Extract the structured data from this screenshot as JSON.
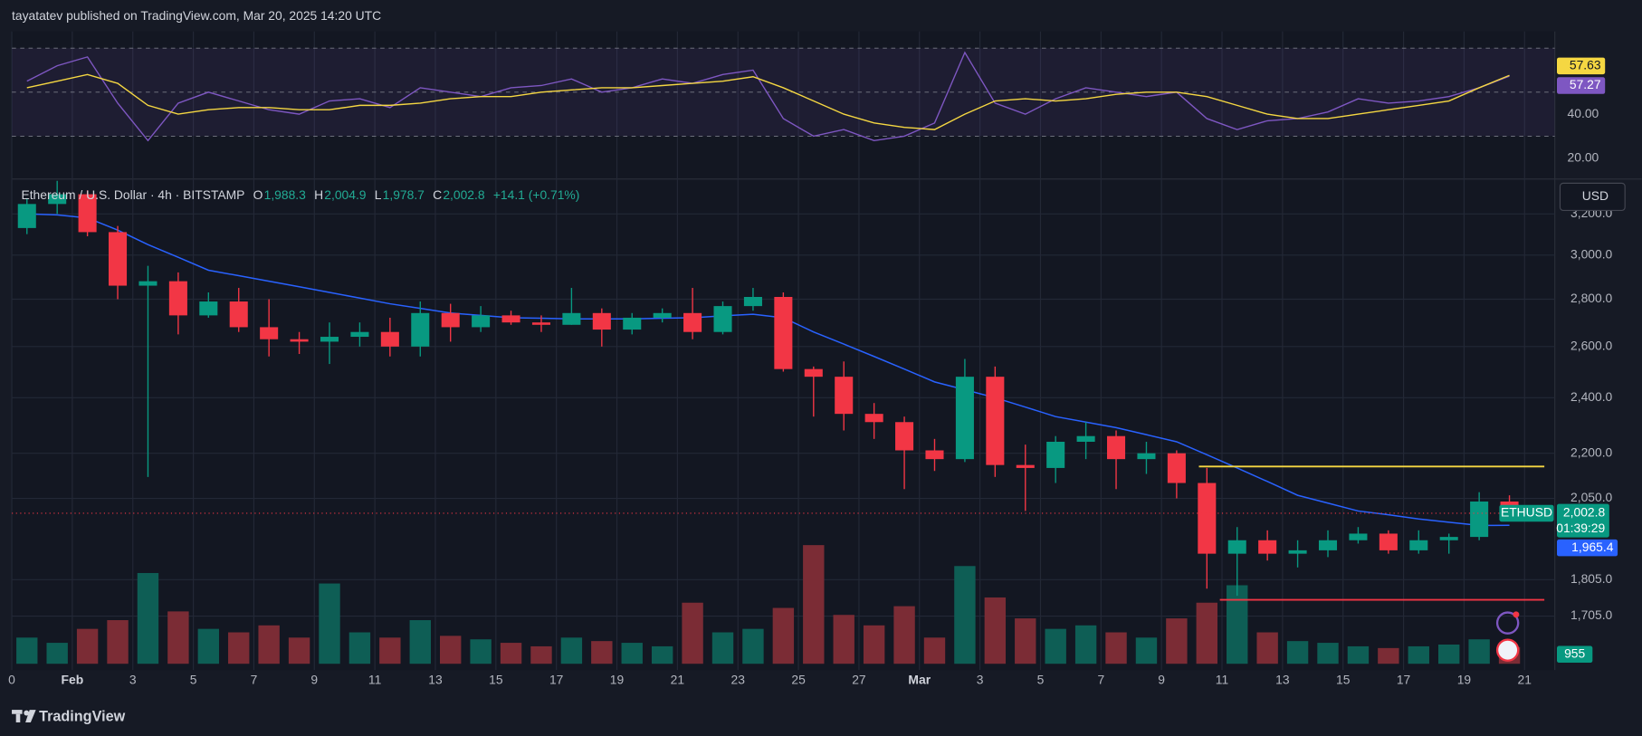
{
  "header": {
    "publisher": "tayatatev published on TradingView.com, Mar 20, 2025 14:20 UTC"
  },
  "footer": {
    "brand": "TradingView"
  },
  "chart_data": [
    {
      "type": "candlestick",
      "legend": {
        "title": "Ethereum / U.S. Dollar · 4h · BITSTAMP",
        "items": [
          {
            "key": "O",
            "value": "1,988.3"
          },
          {
            "key": "H",
            "value": "2,004.9"
          },
          {
            "key": "L",
            "value": "1,978.7"
          },
          {
            "key": "C",
            "value": "2,002.8"
          }
        ],
        "change": "+14.1 (+0.71%)"
      },
      "currency": "USD",
      "categories": [
        "0",
        null,
        "Feb",
        null,
        "3",
        null,
        "5",
        null,
        "7",
        null,
        "9",
        null,
        "11",
        null,
        "13",
        null,
        "15",
        null,
        "17",
        null,
        "19",
        null,
        "21",
        null,
        "23",
        null,
        "25",
        null,
        "27",
        null,
        "Mar",
        null,
        "3",
        null,
        "5",
        null,
        "7",
        null,
        "9",
        null,
        "11",
        null,
        "13",
        null,
        "15",
        null,
        "17",
        null,
        "19",
        null,
        "21"
      ],
      "open": [
        3130,
        3250,
        3300,
        3110,
        2860,
        2880,
        2730,
        2790,
        2680,
        2630,
        2620,
        2640,
        2660,
        2600,
        2740,
        2680,
        2730,
        2700,
        2690,
        2740,
        2670,
        2720,
        2740,
        2660,
        2770,
        2810,
        2510,
        2480,
        2340,
        2310,
        2210,
        2180,
        2480,
        2160,
        2150,
        2240,
        2260,
        2180,
        2200,
        2100,
        1880,
        1920,
        1880,
        1890,
        1920,
        1940,
        1890,
        1920,
        1930,
        2040,
        null
      ],
      "high": [
        3280,
        3370,
        3320,
        3140,
        2950,
        2920,
        2830,
        2850,
        2800,
        2660,
        2700,
        2700,
        2720,
        2790,
        2780,
        2770,
        2750,
        2730,
        2850,
        2760,
        2740,
        2760,
        2850,
        2790,
        2850,
        2830,
        2520,
        2540,
        2380,
        2330,
        2250,
        2550,
        2520,
        2230,
        2260,
        2310,
        2280,
        2240,
        2210,
        2150,
        1960,
        1950,
        1920,
        1950,
        1960,
        1950,
        1950,
        1940,
        2070,
        2060,
        null
      ],
      "low": [
        3100,
        3200,
        3090,
        2800,
        2120,
        2650,
        2720,
        2660,
        2560,
        2570,
        2530,
        2600,
        2560,
        2560,
        2620,
        2660,
        2690,
        2660,
        2690,
        2600,
        2650,
        2700,
        2630,
        2650,
        2750,
        2500,
        2330,
        2280,
        2250,
        2080,
        2140,
        2170,
        2120,
        2010,
        2100,
        2180,
        2080,
        2130,
        2050,
        1780,
        1760,
        1860,
        1840,
        1870,
        1910,
        1880,
        1880,
        1880,
        1920,
        1990,
        null
      ],
      "close": [
        3250,
        3300,
        3110,
        2860,
        2880,
        2730,
        2790,
        2680,
        2630,
        2620,
        2640,
        2660,
        2600,
        2740,
        2680,
        2730,
        2700,
        2690,
        2740,
        2670,
        2720,
        2740,
        2660,
        2770,
        2810,
        2510,
        2480,
        2340,
        2310,
        2210,
        2180,
        2480,
        2160,
        2150,
        2240,
        2260,
        2180,
        2200,
        2100,
        1880,
        1920,
        1880,
        1890,
        1920,
        1940,
        1890,
        1920,
        1930,
        2040,
        2002.8,
        null
      ],
      "up_color": "#089981",
      "down_color": "#f23645",
      "close_label": "2,002.8",
      "symbol": "ETHUSD",
      "countdown": "01:39:29",
      "ma_values": [
        3200,
        3195,
        3180,
        3120,
        3050,
        2990,
        2930,
        2905,
        2880,
        2855,
        2830,
        2805,
        2780,
        2760,
        2740,
        2730,
        2720,
        2718,
        2715,
        2715,
        2715,
        2718,
        2720,
        2728,
        2735,
        2720,
        2660,
        2610,
        2560,
        2510,
        2460,
        2430,
        2400,
        2365,
        2330,
        2310,
        2290,
        2265,
        2240,
        2195,
        2150,
        2105,
        2060,
        2035,
        2010,
        1998,
        1985,
        1975,
        1965,
        1965.4,
        null
      ],
      "ma_color": "#2962ff",
      "ma_value_label": "1,965.4",
      "volume": [
        1500,
        1200,
        2000,
        2500,
        5200,
        3000,
        2000,
        1800,
        2200,
        1500,
        4600,
        1800,
        1500,
        2500,
        1600,
        1400,
        1200,
        1000,
        1500,
        1300,
        1200,
        1000,
        3500,
        1800,
        2000,
        3200,
        6800,
        2800,
        2200,
        3300,
        1500,
        5600,
        3800,
        2600,
        2000,
        2200,
        1800,
        1500,
        2600,
        3500,
        4500,
        1800,
        1300,
        1200,
        1000,
        900,
        1000,
        1100,
        1400,
        955,
        null
      ],
      "volume_ylim": [
        0,
        9000
      ],
      "volume_up_color": "#0e5e55",
      "volume_down_color": "#7b2c35",
      "volume_value_label": "955",
      "levels": [
        {
          "value": 2155,
          "color": "#f5d742"
        },
        {
          "value": 1749,
          "color": "#f23645"
        }
      ],
      "log": true,
      "grid": true,
      "ylim": [
        1567,
        3374
      ],
      "yticks": [
        {
          "value": 3200,
          "label": "3,200.0"
        },
        {
          "value": 3000,
          "label": "3,000.0"
        },
        {
          "value": 2800,
          "label": "2,800.0"
        },
        {
          "value": 2600,
          "label": "2,600.0"
        },
        {
          "value": 2400,
          "label": "2,400.0"
        },
        {
          "value": 2200,
          "label": "2,200.0"
        },
        {
          "value": 2050,
          "label": "2,050.0"
        },
        {
          "value": 1805,
          "label": "1,805.0"
        },
        {
          "value": 1705,
          "label": "1,705.0"
        }
      ]
    },
    {
      "type": "line",
      "ylim": [
        11,
        77.6
      ],
      "yticks": [
        {
          "value": 40,
          "label": "40.00"
        },
        {
          "value": 20,
          "label": "20.00"
        }
      ],
      "levels": [
        70,
        50,
        30
      ],
      "series": [
        {
          "color": "#7e57c2",
          "value_label": "57.27",
          "values": [
            55,
            62,
            66,
            45,
            28,
            45,
            50,
            46,
            42,
            40,
            46,
            47,
            43,
            52,
            50,
            48,
            52,
            53,
            56,
            50,
            52,
            56,
            54,
            58,
            60,
            38,
            30,
            33,
            28,
            30,
            36,
            68,
            45,
            40,
            47,
            52,
            50,
            48,
            50,
            38,
            33,
            37,
            38,
            41,
            47,
            45,
            46,
            48,
            52,
            57.27,
            null
          ]
        },
        {
          "color": "#f5d742",
          "value_label": "57.63",
          "values": [
            52,
            55,
            58,
            54,
            44,
            40,
            42,
            43,
            43,
            42,
            42,
            44,
            44,
            45,
            47,
            48,
            48,
            50,
            51,
            52,
            52,
            53,
            54,
            55,
            57,
            52,
            46,
            40,
            36,
            34,
            33,
            40,
            46,
            47,
            46,
            47,
            49,
            50,
            50,
            48,
            44,
            40,
            38,
            38,
            40,
            42,
            44,
            46,
            52,
            57.63,
            null
          ]
        }
      ]
    }
  ]
}
